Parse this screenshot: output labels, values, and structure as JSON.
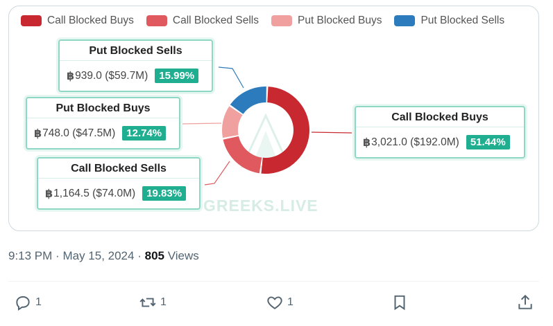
{
  "legend": [
    {
      "label": "Call Blocked Buys",
      "color": "#c8282f"
    },
    {
      "label": "Call Blocked Sells",
      "color": "#e0595f"
    },
    {
      "label": "Put Blocked Buys",
      "color": "#f0a19f"
    },
    {
      "label": "Put Blocked Sells",
      "color": "#2b7bbd"
    }
  ],
  "chart_data": {
    "type": "pie",
    "style": "donut",
    "categories": [
      "Call Blocked Buys",
      "Call Blocked Sells",
      "Put Blocked Buys",
      "Put Blocked Sells"
    ],
    "values": [
      51.44,
      19.83,
      12.74,
      15.99
    ],
    "unit": "%",
    "colors": [
      "#c8282f",
      "#e0595f",
      "#f0a19f",
      "#2b7bbd"
    ],
    "legend_position": "top-left",
    "slices": [
      {
        "name": "Call Blocked Buys",
        "btc": "3,021.0",
        "usd": "($192.0M)",
        "percent": "51.44%"
      },
      {
        "name": "Call Blocked Sells",
        "btc": "1,164.5",
        "usd": "($74.0M)",
        "percent": "19.83%"
      },
      {
        "name": "Put Blocked Buys",
        "btc": "748.0",
        "usd": "($47.5M)",
        "percent": "12.74%"
      },
      {
        "name": "Put Blocked Sells",
        "btc": "939.0",
        "usd": "($59.7M)",
        "percent": "15.99%"
      }
    ]
  },
  "callouts": {
    "put_sells": {
      "title": "Put Blocked Sells",
      "value": "939.0 ($59.7M)",
      "pct": "15.99%"
    },
    "put_buys": {
      "title": "Put Blocked Buys",
      "value": "748.0 ($47.5M)",
      "pct": "12.74%"
    },
    "call_sells": {
      "title": "Call Blocked Sells",
      "value": "1,164.5 ($74.0M)",
      "pct": "19.83%"
    },
    "call_buys": {
      "title": "Call Blocked Buys",
      "value": "3,021.0 ($192.0M)",
      "pct": "51.44%"
    }
  },
  "currency_symbol": "฿",
  "watermark": "GREEKS.LIVE",
  "meta": {
    "time": "9:13 PM",
    "separator": "·",
    "date": "May 15, 2024",
    "views_count": "805",
    "views_label": "Views"
  },
  "actions": {
    "reply": {
      "icon": "reply-icon",
      "count": "1"
    },
    "repost": {
      "icon": "repost-icon",
      "count": "1"
    },
    "like": {
      "icon": "heart-icon",
      "count": "1"
    },
    "bookmark": {
      "icon": "bookmark-icon"
    },
    "share": {
      "icon": "share-icon"
    }
  }
}
